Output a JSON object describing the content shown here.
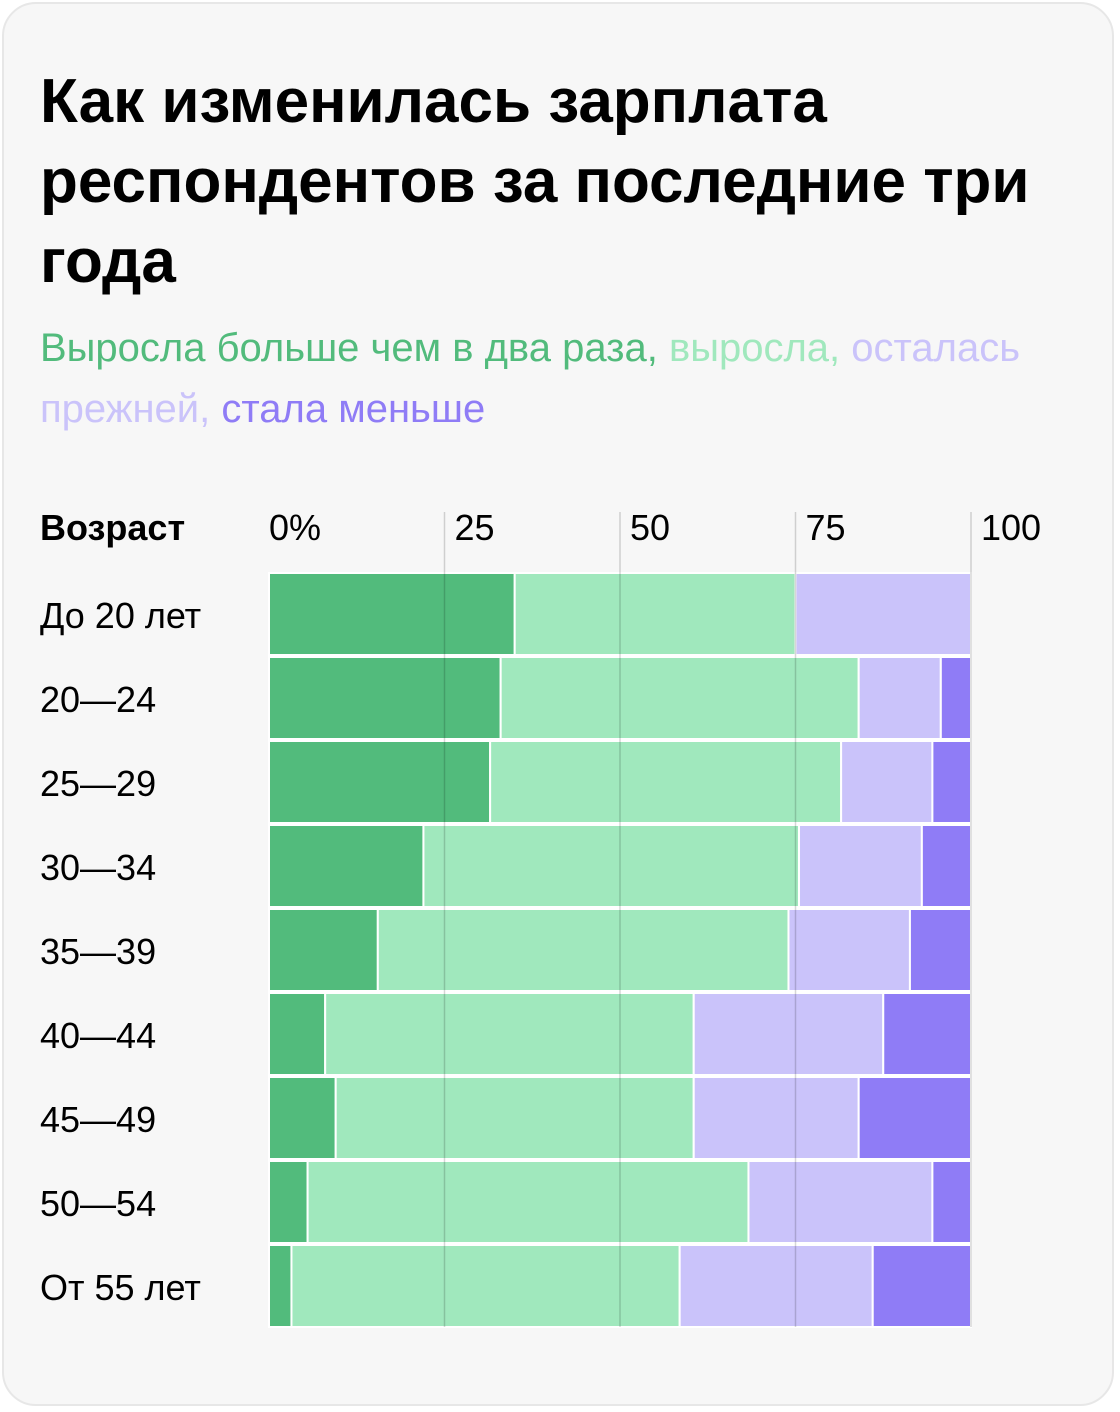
{
  "title": "Как изменилась зарплата респондентов за последние три года",
  "legend": [
    {
      "text": "Выросла больше чем в два раза",
      "sep": ", ",
      "color": "#52bb7c"
    },
    {
      "text": "выросла",
      "sep": ", ",
      "color": "#a0e8bd"
    },
    {
      "text": "осталась прежней",
      "sep": ", ",
      "color": "#cac3fa"
    },
    {
      "text": "стала меньше",
      "sep": "",
      "color": "#8f7cf6"
    }
  ],
  "chart_data": {
    "type": "bar",
    "orientation": "horizontal",
    "stacked": true,
    "ylabel": "Возраст",
    "x_ticks": [
      "0%",
      "25",
      "50",
      "75",
      "100"
    ],
    "xlim": [
      0,
      100
    ],
    "grid": true,
    "categories": [
      "До 20 лет",
      "20—24",
      "25—29",
      "30—34",
      "35—39",
      "40—44",
      "45—49",
      "50—54",
      "От 55 лет"
    ],
    "series": [
      {
        "name": "Выросла больше чем в два раза",
        "color": "#52bb7c",
        "values": [
          35,
          33,
          31.5,
          22,
          15.5,
          8,
          9.5,
          5.5,
          3.2
        ]
      },
      {
        "name": "выросла",
        "color": "#a0e8bd",
        "values": [
          40,
          51,
          50,
          53.5,
          58.5,
          52.5,
          51,
          62.8,
          55.3
        ]
      },
      {
        "name": "осталась прежней",
        "color": "#cac3fa",
        "values": [
          25,
          11.7,
          13,
          17.5,
          17.3,
          27,
          23.5,
          26.2,
          27.5
        ]
      },
      {
        "name": "стала меньше",
        "color": "#8f7cf6",
        "values": [
          0,
          4.3,
          5.5,
          7,
          8.7,
          12.5,
          16,
          5.5,
          14
        ]
      }
    ]
  }
}
